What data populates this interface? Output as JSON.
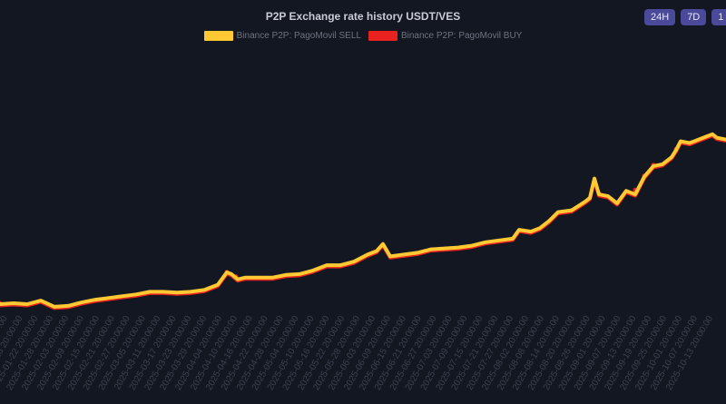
{
  "chart_data": {
    "type": "line",
    "title": "P2P Exchange rate history USDT/VES",
    "legend_position": "top-center",
    "colors": {
      "background": "#131722",
      "sell": "#ffc933",
      "buy": "#e8231f",
      "tick_label": "#3d4150",
      "button": "#4b4a9a"
    },
    "x_ticks": [
      "2025-01-10 20:00:00",
      "2025-01-16 20:00:00",
      "2025-01-22 20:00:00",
      "2025-01-28 20:00:00",
      "2025-02-03 20:00:00",
      "2025-02-09 20:00:00",
      "2025-02-15 20:00:00",
      "2025-02-21 20:00:00",
      "2025-02-27 20:00:00",
      "2025-03-05 20:00:00",
      "2025-03-11 20:00:00",
      "2025-03-17 20:00:00",
      "2025-03-23 20:00:00",
      "2025-03-29 20:00:00",
      "2025-04-04 20:00:00",
      "2025-04-10 20:00:00",
      "2025-04-16 20:00:00",
      "2025-04-22 20:00:00",
      "2025-04-28 20:00:00",
      "2025-05-04 20:00:00",
      "2025-05-10 20:00:00",
      "2025-05-16 20:00:00",
      "2025-05-22 20:00:00",
      "2025-05-28 20:00:00",
      "2025-06-03 20:00:00",
      "2025-06-09 20:00:00",
      "2025-06-15 20:00:00",
      "2025-06-21 20:00:00",
      "2025-06-27 20:00:00",
      "2025-07-03 20:00:00",
      "2025-07-09 20:00:00",
      "2025-07-15 20:00:00",
      "2025-07-21 20:00:00",
      "2025-07-27 20:00:00",
      "2025-08-02 20:00:00",
      "2025-08-08 20:00:00",
      "2025-08-14 20:00:00",
      "2025-08-20 20:00:00",
      "2025-08-26 20:00:00",
      "2025-09-01 20:00:00",
      "2025-09-07 20:00:00",
      "2025-09-13 20:00:00",
      "2025-09-19 20:00:00",
      "2025-09-25 20:00:00",
      "2025-10-01 20:00:00",
      "2025-10-07 20:00:00",
      "2025-10-13 20:00:00"
    ],
    "series": [
      {
        "name": "Binance P2P: PagoMovil SELL",
        "color": "#ffc933",
        "values": [
          [
            0,
            0.0
          ],
          [
            15,
            0.005
          ],
          [
            30,
            0.0
          ],
          [
            45,
            0.02
          ],
          [
            60,
            -0.015
          ],
          [
            75,
            -0.01
          ],
          [
            90,
            0.01
          ],
          [
            105,
            0.025
          ],
          [
            120,
            0.035
          ],
          [
            135,
            0.045
          ],
          [
            150,
            0.055
          ],
          [
            165,
            0.07
          ],
          [
            180,
            0.07
          ],
          [
            195,
            0.065
          ],
          [
            210,
            0.07
          ],
          [
            225,
            0.08
          ],
          [
            240,
            0.11
          ],
          [
            250,
            0.18
          ],
          [
            255,
            0.17
          ],
          [
            262,
            0.14
          ],
          [
            270,
            0.15
          ],
          [
            285,
            0.15
          ],
          [
            300,
            0.15
          ],
          [
            315,
            0.165
          ],
          [
            330,
            0.17
          ],
          [
            345,
            0.19
          ],
          [
            360,
            0.22
          ],
          [
            375,
            0.22
          ],
          [
            390,
            0.24
          ],
          [
            405,
            0.28
          ],
          [
            415,
            0.3
          ],
          [
            422,
            0.34
          ],
          [
            430,
            0.27
          ],
          [
            445,
            0.28
          ],
          [
            460,
            0.29
          ],
          [
            475,
            0.31
          ],
          [
            490,
            0.315
          ],
          [
            505,
            0.32
          ],
          [
            520,
            0.33
          ],
          [
            535,
            0.35
          ],
          [
            550,
            0.36
          ],
          [
            565,
            0.37
          ],
          [
            572,
            0.42
          ],
          [
            585,
            0.41
          ],
          [
            595,
            0.43
          ],
          [
            605,
            0.47
          ],
          [
            615,
            0.52
          ],
          [
            630,
            0.53
          ],
          [
            645,
            0.58
          ],
          [
            650,
            0.6
          ],
          [
            655,
            0.71
          ],
          [
            660,
            0.62
          ],
          [
            670,
            0.61
          ],
          [
            680,
            0.57
          ],
          [
            690,
            0.64
          ],
          [
            700,
            0.62
          ],
          [
            710,
            0.72
          ],
          [
            720,
            0.78
          ],
          [
            730,
            0.79
          ],
          [
            740,
            0.83
          ],
          [
            745,
            0.87
          ],
          [
            750,
            0.92
          ],
          [
            760,
            0.91
          ],
          [
            770,
            0.93
          ],
          [
            780,
            0.95
          ],
          [
            785,
            0.96
          ],
          [
            790,
            0.94
          ],
          [
            800,
            0.93
          ]
        ]
      },
      {
        "name": "Binance P2P: PagoMovil BUY",
        "color": "#e8231f",
        "values": [
          [
            0,
            0.01
          ],
          [
            250,
            0.185
          ],
          [
            260,
            0.16
          ],
          [
            500,
            0.32
          ],
          [
            660,
            0.63
          ],
          [
            700,
            0.65
          ],
          [
            710,
            0.73
          ],
          [
            720,
            0.79
          ],
          [
            745,
            0.88
          ]
        ]
      }
    ],
    "y_estimate": "normalized_relative_scale"
  },
  "header": {
    "title": "P2P Exchange rate history USDT/VES",
    "legend_sell": "Binance P2P: PagoMovil SELL",
    "legend_buy": "Binance P2P: PagoMovil BUY",
    "range_24h": "24H",
    "range_7d": "7D",
    "range_cut": "1"
  }
}
